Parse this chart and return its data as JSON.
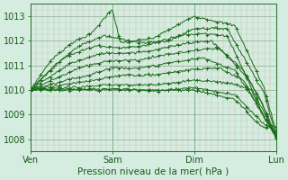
{
  "xlabel": "Pression niveau de la mer( hPa )",
  "bg_color": "#d4ede0",
  "line_color": "#1a6b1a",
  "xlim": [
    0,
    3
  ],
  "ylim": [
    1007.5,
    1013.5
  ],
  "yticks": [
    1008,
    1009,
    1010,
    1011,
    1012,
    1013
  ],
  "xtick_labels": [
    "Ven",
    "Sam",
    "Dim",
    "Lun"
  ],
  "xtick_positions": [
    0,
    1,
    2,
    3
  ],
  "lines": [
    {
      "xk": [
        0,
        0.25,
        0.5,
        0.75,
        1.0,
        1.1,
        1.5,
        2.0,
        2.5,
        2.85,
        3.0
      ],
      "yk": [
        1010.0,
        1011.2,
        1011.9,
        1012.3,
        1013.3,
        1011.9,
        1012.1,
        1013.0,
        1012.6,
        1010.1,
        1008.3
      ]
    },
    {
      "xk": [
        0,
        0.3,
        0.6,
        0.9,
        1.05,
        1.4,
        1.7,
        2.0,
        2.4,
        2.85,
        3.0
      ],
      "yk": [
        1010.0,
        1011.0,
        1011.8,
        1012.2,
        1012.1,
        1011.9,
        1012.0,
        1012.5,
        1012.5,
        1009.9,
        1008.1
      ]
    },
    {
      "xk": [
        0,
        0.4,
        0.8,
        1.1,
        1.4,
        1.8,
        2.1,
        2.4,
        2.75,
        3.0
      ],
      "yk": [
        1010.0,
        1011.3,
        1011.8,
        1011.7,
        1011.8,
        1012.2,
        1012.3,
        1012.2,
        1009.7,
        1008.15
      ]
    },
    {
      "xk": [
        0,
        0.5,
        0.9,
        1.2,
        1.5,
        1.9,
        2.2,
        2.6,
        2.82,
        3.0
      ],
      "yk": [
        1010.0,
        1011.1,
        1011.5,
        1011.5,
        1011.6,
        1011.9,
        1012.0,
        1010.8,
        1009.5,
        1008.0
      ]
    },
    {
      "xk": [
        0,
        0.6,
        1.0,
        1.3,
        1.6,
        2.0,
        2.3,
        2.65,
        2.85,
        3.0
      ],
      "yk": [
        1010.0,
        1010.9,
        1011.2,
        1011.2,
        1011.4,
        1011.6,
        1011.7,
        1010.5,
        1009.3,
        1008.1
      ]
    },
    {
      "xk": [
        0,
        0.7,
        1.0,
        1.4,
        1.7,
        2.1,
        2.5,
        2.8,
        3.0
      ],
      "yk": [
        1010.0,
        1010.6,
        1010.9,
        1010.9,
        1011.1,
        1011.3,
        1010.8,
        1009.2,
        1008.05
      ]
    },
    {
      "xk": [
        0,
        0.8,
        1.1,
        1.5,
        1.9,
        2.3,
        2.6,
        2.82,
        3.0
      ],
      "yk": [
        1010.0,
        1010.4,
        1010.6,
        1010.6,
        1010.8,
        1010.9,
        1010.4,
        1009.1,
        1008.1
      ]
    },
    {
      "xk": [
        0,
        1.0,
        1.5,
        2.0,
        2.4,
        2.7,
        2.85,
        3.0
      ],
      "yk": [
        1010.0,
        1010.2,
        1010.2,
        1010.4,
        1010.3,
        1010.0,
        1008.9,
        1008.2
      ]
    },
    {
      "xk": [
        0,
        1.0,
        1.5,
        2.0,
        2.5,
        2.82,
        3.0
      ],
      "yk": [
        1010.0,
        1010.05,
        1009.95,
        1010.1,
        1009.8,
        1008.7,
        1008.3
      ]
    },
    {
      "xk": [
        0,
        1.0,
        1.5,
        2.0,
        2.5,
        2.82,
        3.0
      ],
      "yk": [
        1010.0,
        1010.0,
        1010.0,
        1010.0,
        1009.6,
        1008.5,
        1008.5
      ]
    }
  ]
}
